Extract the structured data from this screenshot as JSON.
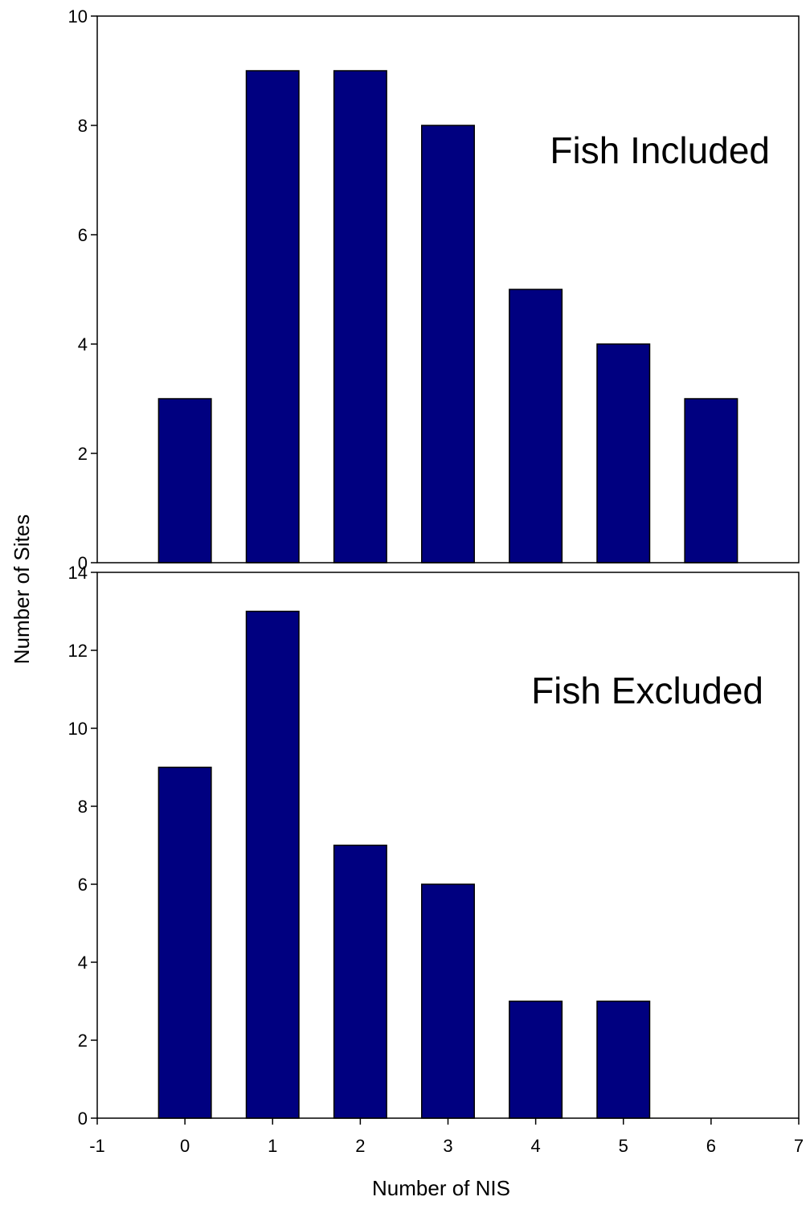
{
  "colors": {
    "bar_fill": "#000080",
    "bar_stroke": "#000000",
    "axis": "#000000",
    "background": "#ffffff"
  },
  "chart_data": [
    {
      "type": "bar",
      "annotation": "Fish Included",
      "x": [
        0,
        1,
        2,
        3,
        4,
        5,
        6
      ],
      "values": [
        3,
        9,
        9,
        8,
        5,
        4,
        3
      ],
      "xlim": [
        -1,
        7
      ],
      "ylim": [
        0,
        10
      ],
      "yticks": [
        "0",
        "2",
        "4",
        "6",
        "8",
        "10"
      ],
      "grid": false
    },
    {
      "type": "bar",
      "annotation": "Fish Excluded",
      "x": [
        0,
        1,
        2,
        3,
        4,
        5
      ],
      "values": [
        9,
        13,
        7,
        6,
        3,
        3
      ],
      "xlim": [
        -1,
        7
      ],
      "ylim": [
        0,
        14
      ],
      "yticks": [
        "0",
        "2",
        "4",
        "6",
        "8",
        "10",
        "12",
        "14"
      ],
      "xticks": [
        "-1",
        "0",
        "1",
        "2",
        "3",
        "4",
        "5",
        "6",
        "7"
      ],
      "grid": false
    }
  ],
  "ylabel": "Number of Sites",
  "xlabel": "Number of NIS"
}
